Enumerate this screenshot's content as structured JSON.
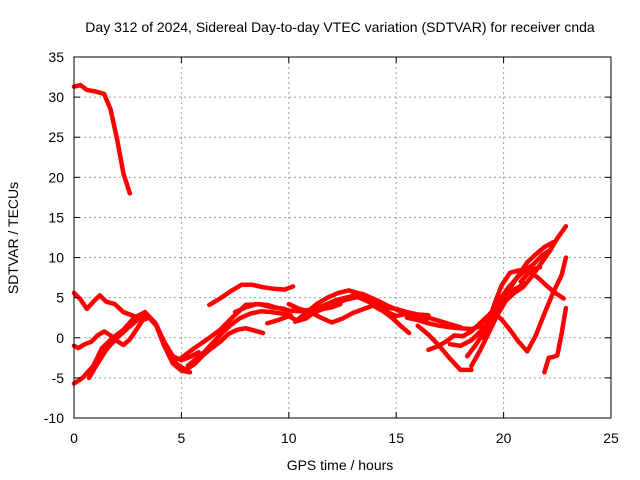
{
  "chart_data": {
    "type": "line",
    "title": "Day 312 of 2024, Sidereal Day-to-day VTEC variation (SDTVAR) for receiver cnda",
    "xlabel": "GPS time / hours",
    "ylabel": "SDTVAR / TECUs",
    "xlim": [
      0,
      25
    ],
    "ylim": [
      -10,
      35
    ],
    "xticks": [
      0,
      5,
      10,
      15,
      20,
      25
    ],
    "yticks": [
      -10,
      -5,
      0,
      5,
      10,
      15,
      20,
      25,
      30,
      35
    ],
    "xtick_labels": [
      "0",
      "5",
      "10",
      "15",
      "20",
      "25"
    ],
    "ytick_labels": [
      "-10",
      "-5",
      "0",
      "5",
      "10",
      "15",
      "20",
      "25",
      "30",
      "35"
    ],
    "grid": true,
    "legend": "none",
    "color": "#ff0000",
    "series": [
      {
        "name": "arc-1",
        "x": [
          0.0,
          0.3,
          0.6,
          1.0,
          1.4,
          1.7,
          2.0,
          2.3,
          2.6
        ],
        "y": [
          31.3,
          31.5,
          30.9,
          30.7,
          30.4,
          28.5,
          24.8,
          20.5,
          18.0
        ]
      },
      {
        "name": "arc-2",
        "x": [
          0.0,
          0.2,
          0.5,
          0.8,
          1.1,
          1.4,
          1.7,
          2.0,
          2.3,
          2.6,
          2.9,
          3.2,
          3.5,
          3.8
        ],
        "y": [
          -1.0,
          -1.3,
          -0.8,
          -0.5,
          0.3,
          0.8,
          0.3,
          -0.4,
          -0.9,
          -0.2,
          1.0,
          2.2,
          2.5,
          1.6
        ]
      },
      {
        "name": "arc-3",
        "x": [
          0.0,
          0.4,
          0.9,
          1.3,
          1.8,
          2.3,
          2.8,
          3.3,
          3.8,
          4.2,
          4.6,
          5.0,
          5.4,
          5.8
        ],
        "y": [
          -5.7,
          -5.0,
          -3.5,
          -1.3,
          0.0,
          1.0,
          2.5,
          3.2,
          1.8,
          -0.5,
          -2.3,
          -2.8,
          -2.4,
          -1.8
        ]
      },
      {
        "name": "arc-4",
        "x": [
          0.0,
          0.3,
          0.6,
          0.9,
          1.2,
          1.5,
          1.9,
          2.3,
          2.7,
          3.1
        ],
        "y": [
          5.6,
          4.8,
          3.6,
          4.5,
          5.3,
          4.5,
          4.2,
          3.2,
          2.8,
          2.4
        ]
      },
      {
        "name": "arc-5",
        "x": [
          0.7,
          1.1,
          1.5,
          2.0,
          2.5,
          3.0,
          3.4,
          3.8,
          4.2,
          4.6,
          5.0,
          5.4
        ],
        "y": [
          -5.0,
          -3.2,
          -1.5,
          0.0,
          1.2,
          2.3,
          2.9,
          1.7,
          -1.0,
          -3.2,
          -4.1,
          -4.3
        ]
      },
      {
        "name": "arc-6",
        "x": [
          4.4,
          4.8,
          5.2,
          5.6,
          6.0,
          6.4,
          6.8,
          7.2,
          7.6,
          8.0,
          8.4,
          8.8
        ],
        "y": [
          -2.0,
          -3.3,
          -4.0,
          -3.3,
          -2.2,
          -1.3,
          -0.5,
          0.5,
          1.0,
          1.2,
          0.9,
          0.6
        ]
      },
      {
        "name": "arc-7",
        "x": [
          5.0,
          5.6,
          6.2,
          6.8,
          7.4,
          8.0,
          8.6,
          9.2,
          9.8
        ],
        "y": [
          -2.5,
          -1.3,
          -0.2,
          1.0,
          2.6,
          4.1,
          4.2,
          3.8,
          3.6
        ]
      },
      {
        "name": "arc-8",
        "x": [
          5.3,
          5.7,
          6.1,
          6.5,
          6.9,
          7.3,
          7.7,
          8.2,
          8.7,
          9.2,
          9.7,
          10.1
        ],
        "y": [
          -3.5,
          -2.6,
          -1.7,
          -0.5,
          0.6,
          1.6,
          2.4,
          3.0,
          3.3,
          3.2,
          3.0,
          2.8
        ]
      },
      {
        "name": "arc-9",
        "x": [
          6.3,
          6.8,
          7.3,
          7.8,
          8.3,
          8.8,
          9.3,
          9.8,
          10.2
        ],
        "y": [
          4.1,
          4.9,
          5.8,
          6.6,
          6.6,
          6.3,
          6.1,
          6.0,
          6.4
        ]
      },
      {
        "name": "arc-10",
        "x": [
          7.5,
          8.0,
          8.5,
          9.0,
          9.5,
          10.0,
          10.5,
          11.0,
          11.5
        ],
        "y": [
          3.2,
          3.8,
          4.2,
          4.1,
          3.7,
          3.4,
          3.3,
          3.5,
          3.8
        ]
      },
      {
        "name": "arc-11",
        "x": [
          9.0,
          9.5,
          10.0,
          10.4,
          10.8,
          11.2,
          11.6,
          12.0,
          12.4
        ],
        "y": [
          1.8,
          2.2,
          2.7,
          2.1,
          2.4,
          3.2,
          3.6,
          3.8,
          4.2
        ]
      },
      {
        "name": "arc-12",
        "x": [
          10.0,
          10.5,
          11.0,
          11.5,
          12.0,
          12.5,
          13.0,
          13.5,
          14.0
        ],
        "y": [
          4.2,
          3.6,
          3.2,
          2.5,
          1.9,
          2.4,
          3.1,
          3.6,
          4.1
        ]
      },
      {
        "name": "arc-13",
        "x": [
          10.3,
          10.8,
          11.3,
          11.8,
          12.3,
          12.8,
          13.3,
          13.8
        ],
        "y": [
          2.0,
          3.1,
          4.2,
          5.0,
          5.6,
          5.9,
          5.5,
          4.7
        ]
      },
      {
        "name": "arc-14",
        "x": [
          11.0,
          11.6,
          12.2,
          12.8,
          13.4,
          14.0,
          14.6,
          15.2,
          15.8,
          16.4
        ],
        "y": [
          3.2,
          4.0,
          4.7,
          5.1,
          5.5,
          4.8,
          4.0,
          3.3,
          2.7,
          2.2
        ]
      },
      {
        "name": "arc-15",
        "x": [
          12.0,
          12.6,
          13.2,
          13.8,
          14.4,
          15.0,
          15.5,
          16.0,
          16.5
        ],
        "y": [
          4.0,
          4.7,
          5.1,
          4.4,
          3.8,
          3.6,
          3.2,
          2.9,
          2.8
        ]
      },
      {
        "name": "arc-16",
        "x": [
          13.0,
          13.5,
          14.0,
          14.5,
          15.0,
          15.5,
          16.0,
          16.5,
          17.0,
          17.5,
          18.0
        ],
        "y": [
          5.3,
          5.0,
          4.4,
          3.3,
          2.7,
          3.0,
          2.7,
          2.5,
          2.1,
          1.7,
          1.3
        ]
      },
      {
        "name": "arc-17",
        "x": [
          14.0,
          14.4,
          14.8,
          15.2,
          15.6
        ],
        "y": [
          3.9,
          3.3,
          2.5,
          1.5,
          0.6
        ]
      },
      {
        "name": "arc-18",
        "x": [
          15.5,
          16.0,
          16.5,
          17.0,
          17.5,
          18.0,
          18.5,
          19.0
        ],
        "y": [
          2.5,
          2.2,
          1.8,
          1.5,
          1.3,
          1.2,
          1.1,
          1.5
        ]
      },
      {
        "name": "arc-19",
        "x": [
          16.0,
          16.5,
          17.0,
          17.5,
          18.0,
          18.5
        ],
        "y": [
          1.5,
          0.4,
          -1.0,
          -2.6,
          -4.0,
          -4.0
        ]
      },
      {
        "name": "arc-20",
        "x": [
          16.5,
          16.9,
          17.3,
          17.7,
          18.1,
          18.5,
          18.9,
          19.3,
          19.7,
          20.1,
          20.5,
          21.0
        ],
        "y": [
          -1.5,
          -1.1,
          -0.5,
          0.3,
          0.2,
          0.8,
          1.8,
          2.8,
          4.0,
          5.5,
          6.0,
          6.8
        ]
      },
      {
        "name": "arc-21",
        "x": [
          17.5,
          18.0,
          18.5,
          19.0,
          19.4,
          19.8,
          20.2,
          20.6,
          21.0,
          21.4,
          21.8,
          22.2
        ],
        "y": [
          -0.8,
          -1.0,
          -0.3,
          1.0,
          2.6,
          4.6,
          6.2,
          7.4,
          8.4,
          9.2,
          10.3,
          11.0
        ]
      },
      {
        "name": "arc-22",
        "x": [
          18.3,
          18.7,
          19.1,
          19.5,
          19.9,
          20.3,
          20.7,
          21.1,
          21.5,
          21.9,
          22.3
        ],
        "y": [
          -2.3,
          -0.9,
          0.8,
          2.6,
          4.4,
          6.2,
          7.8,
          9.4,
          10.4,
          11.3,
          11.9
        ]
      },
      {
        "name": "arc-23",
        "x": [
          18.5,
          18.9,
          19.3,
          19.7,
          20.1,
          20.5,
          20.9,
          21.3,
          21.7,
          22.1,
          22.5,
          22.9
        ],
        "y": [
          -3.5,
          -1.6,
          0.6,
          2.8,
          4.6,
          5.6,
          6.3,
          7.6,
          9.1,
          10.6,
          12.4,
          13.9
        ]
      },
      {
        "name": "arc-24",
        "x": [
          19.0,
          19.3,
          19.6,
          19.9,
          20.3,
          20.7,
          21.2,
          21.7
        ],
        "y": [
          0.0,
          2.0,
          4.4,
          6.5,
          8.1,
          8.4,
          8.4,
          8.8
        ]
      },
      {
        "name": "arc-25",
        "x": [
          19.5,
          19.9,
          20.3,
          20.7,
          21.1,
          21.5,
          21.9,
          22.3,
          22.7,
          22.9
        ],
        "y": [
          3.2,
          2.3,
          1.0,
          -0.5,
          -1.7,
          0.3,
          3.0,
          5.6,
          7.8,
          10.0
        ]
      },
      {
        "name": "arc-26",
        "x": [
          20.8,
          21.2,
          21.6,
          22.0,
          22.4,
          22.8
        ],
        "y": [
          7.0,
          8.2,
          7.5,
          6.5,
          5.6,
          4.9
        ]
      },
      {
        "name": "arc-27",
        "x": [
          21.9,
          22.1,
          22.3,
          22.5,
          22.7,
          22.9
        ],
        "y": [
          -4.3,
          -2.5,
          -2.4,
          -2.2,
          0.5,
          3.7
        ]
      }
    ]
  }
}
